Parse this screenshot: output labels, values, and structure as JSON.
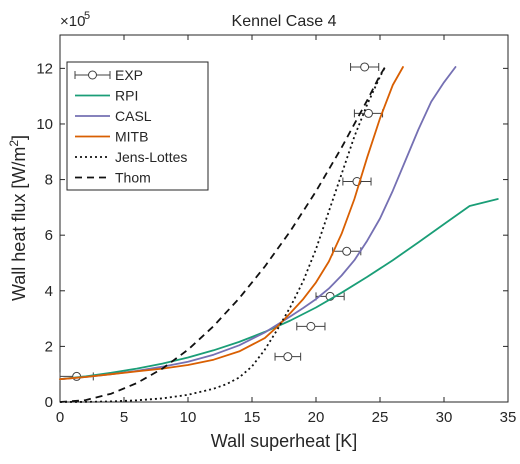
{
  "chart_data": {
    "type": "line",
    "title": "Kennel Case 4",
    "xlabel": "Wall superheat [K]",
    "ylabel_base": "Wall heat flux [W/m",
    "ylabel_sup": "2",
    "ylabel_end": "]",
    "y_exponent_base": "×10",
    "y_exponent_power": "5",
    "xlim": [
      0,
      35
    ],
    "ylim": [
      0,
      13.2
    ],
    "xticks": [
      0,
      5,
      10,
      15,
      20,
      25,
      30,
      35
    ],
    "xtick_labels": [
      "0",
      "5",
      "10",
      "15",
      "20",
      "25",
      "30",
      "35"
    ],
    "yticks": [
      0,
      2,
      4,
      6,
      8,
      10,
      12
    ],
    "ytick_labels": [
      "0",
      "2",
      "4",
      "6",
      "8",
      "10",
      "12"
    ],
    "grid": false,
    "legend_position": "top-left",
    "series": [
      {
        "name": "EXP",
        "kind": "errorbar",
        "color": "#404040",
        "points": [
          {
            "x": 1.3,
            "y": 0.92,
            "xerr": 1.3
          },
          {
            "x": 17.8,
            "y": 1.63,
            "xerr": 1.0
          },
          {
            "x": 19.6,
            "y": 2.72,
            "xerr": 1.1
          },
          {
            "x": 21.1,
            "y": 3.8,
            "xerr": 1.1
          },
          {
            "x": 22.4,
            "y": 5.42,
            "xerr": 1.1
          },
          {
            "x": 23.2,
            "y": 7.93,
            "xerr": 1.1
          },
          {
            "x": 24.1,
            "y": 10.38,
            "xerr": 1.1
          },
          {
            "x": 23.8,
            "y": 12.05,
            "xerr": 1.1
          }
        ]
      },
      {
        "name": "RPI",
        "kind": "line",
        "color": "#1a9e77",
        "dash": "",
        "x": [
          0,
          2,
          4,
          6,
          8,
          10,
          12,
          14,
          16,
          18,
          20,
          22,
          24,
          26,
          28,
          30,
          32,
          34.2
        ],
        "y": [
          0.82,
          0.92,
          1.05,
          1.2,
          1.38,
          1.6,
          1.86,
          2.16,
          2.52,
          2.93,
          3.4,
          3.93,
          4.5,
          5.1,
          5.74,
          6.4,
          7.05,
          7.3
        ]
      },
      {
        "name": "CASL",
        "kind": "line",
        "color": "#7570b3",
        "dash": "",
        "x": [
          0,
          2,
          4,
          6,
          8,
          10,
          12,
          14,
          16,
          18,
          19,
          20,
          21,
          22,
          23,
          24,
          25,
          26,
          27,
          28,
          29,
          30,
          30.9
        ],
        "y": [
          0.82,
          0.9,
          1.0,
          1.12,
          1.27,
          1.45,
          1.7,
          2.04,
          2.5,
          3.08,
          3.38,
          3.7,
          4.08,
          4.55,
          5.1,
          5.8,
          6.6,
          7.6,
          8.7,
          9.8,
          10.8,
          11.5,
          12.05
        ]
      },
      {
        "name": "MITB",
        "kind": "line",
        "color": "#d95f02",
        "dash": "",
        "x": [
          0,
          2,
          4,
          6,
          8,
          10,
          12,
          14,
          16,
          17,
          18,
          19,
          20,
          21,
          22,
          23,
          24,
          25,
          26,
          26.8
        ],
        "y": [
          0.82,
          0.9,
          1.0,
          1.1,
          1.2,
          1.33,
          1.52,
          1.82,
          2.3,
          2.72,
          3.2,
          3.7,
          4.3,
          5.05,
          6.05,
          7.3,
          8.8,
          10.2,
          11.4,
          12.05
        ]
      },
      {
        "name": "Jens-Lottes",
        "kind": "line",
        "color": "#111111",
        "dash": "2,3",
        "x": [
          0,
          2,
          4,
          6,
          8,
          10,
          12,
          13,
          14,
          15,
          16,
          17,
          18,
          19,
          20,
          21,
          22,
          23,
          24,
          25,
          25.4
        ],
        "y": [
          0,
          0.002,
          0.02,
          0.06,
          0.13,
          0.26,
          0.48,
          0.64,
          0.88,
          1.28,
          1.88,
          2.62,
          3.42,
          4.35,
          5.5,
          6.85,
          8.2,
          9.55,
          10.7,
          11.7,
          12.05
        ]
      },
      {
        "name": "Thom",
        "kind": "line",
        "color": "#111111",
        "dash": "7,5",
        "x": [
          0,
          2,
          4,
          6,
          8,
          10,
          12,
          14,
          16,
          18,
          20,
          22,
          24,
          25,
          25.4
        ],
        "y": [
          0,
          0.07,
          0.3,
          0.68,
          1.2,
          1.88,
          2.73,
          3.73,
          4.87,
          6.15,
          7.58,
          9.15,
          10.85,
          11.75,
          12.05
        ]
      }
    ]
  }
}
